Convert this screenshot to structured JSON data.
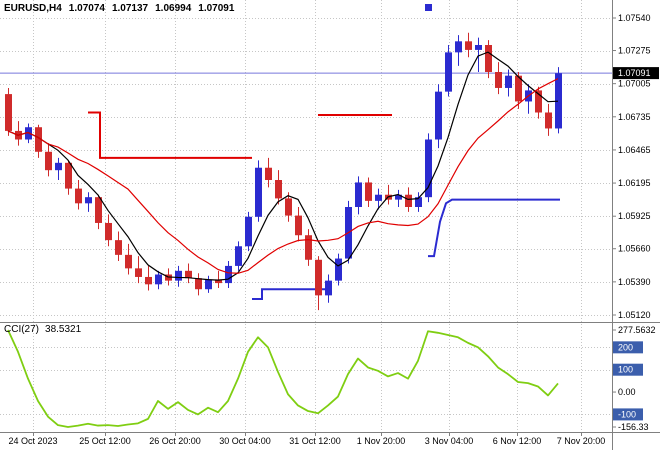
{
  "header": {
    "symbol": "EURUSD,H4",
    "open": "1.07074",
    "high": "1.07137",
    "low": "1.06994",
    "close": "1.07091"
  },
  "colors": {
    "background": "#FFFFFF",
    "text": "#000000",
    "grid": "#C6C6C6",
    "bull": "#2B2BD0",
    "bear": "#D02B2B",
    "price_line": "#7878DC",
    "cci": "#7FCE12",
    "axis_box": "#3B5EAC",
    "current_bg": "#000000",
    "current_text": "#FFFFFF",
    "separator": "#808080"
  },
  "chart_data": {
    "type": "candlestick",
    "title": "EURUSD,H4",
    "timeframe": "H4",
    "price_axis": {
      "tick_labels": [
        "1.07540",
        "1.07275",
        "1.07005",
        "1.06735",
        "1.06465",
        "1.06195",
        "1.05925",
        "1.05660",
        "1.05390",
        "1.05120"
      ],
      "current_price": "1.07091",
      "current_price_value": 1.07091
    },
    "time_axis": {
      "labels": [
        "24 Oct 2023",
        "25 Oct 12:00",
        "26 Oct 20:00",
        "30 Oct 04:00",
        "31 Oct 12:00",
        "1 Nov 20:00",
        "3 Nov 04:00",
        "6 Nov 12:00",
        "7 Nov 20:00"
      ]
    },
    "candles": {
      "ohlc": [
        [
          1.0692,
          1.0697,
          1.0658,
          1.0662
        ],
        [
          1.0662,
          1.067,
          1.065,
          1.0655
        ],
        [
          1.0655,
          1.0668,
          1.0652,
          1.0665
        ],
        [
          1.0665,
          1.0667,
          1.064,
          1.0645
        ],
        [
          1.0645,
          1.0652,
          1.0625,
          1.063
        ],
        [
          1.063,
          1.064,
          1.0622,
          1.0636
        ],
        [
          1.0636,
          1.0638,
          1.061,
          1.0615
        ],
        [
          1.0615,
          1.0622,
          1.0598,
          1.0603
        ],
        [
          1.0603,
          1.0612,
          1.0596,
          1.0608
        ],
        [
          1.0608,
          1.061,
          1.0582,
          1.0587
        ],
        [
          1.0587,
          1.0594,
          1.0568,
          1.0573
        ],
        [
          1.0573,
          1.058,
          1.0556,
          1.0561
        ],
        [
          1.0561,
          1.057,
          1.0545,
          1.055
        ],
        [
          1.055,
          1.056,
          1.0538,
          1.0543
        ],
        [
          1.0543,
          1.0552,
          1.0532,
          1.0537
        ],
        [
          1.0537,
          1.0548,
          1.0533,
          1.0545
        ],
        [
          1.0545,
          1.055,
          1.0536,
          1.054
        ],
        [
          1.054,
          1.0552,
          1.0535,
          1.0548
        ],
        [
          1.0548,
          1.0554,
          1.0538,
          1.0542
        ],
        [
          1.0542,
          1.0546,
          1.0528,
          1.0533
        ],
        [
          1.0533,
          1.0544,
          1.053,
          1.0541
        ],
        [
          1.0541,
          1.0548,
          1.0534,
          1.0538
        ],
        [
          1.0538,
          1.0556,
          1.0534,
          1.0552
        ],
        [
          1.0552,
          1.0572,
          1.0548,
          1.0568
        ],
        [
          1.0568,
          1.0596,
          1.0564,
          1.0592
        ],
        [
          1.0592,
          1.0638,
          1.0588,
          1.0632
        ],
        [
          1.0632,
          1.064,
          1.0616,
          1.0622
        ],
        [
          1.0622,
          1.063,
          1.0602,
          1.0607
        ],
        [
          1.0607,
          1.0612,
          1.0588,
          1.0593
        ],
        [
          1.0593,
          1.06,
          1.0572,
          1.0577
        ],
        [
          1.0577,
          1.0582,
          1.0552,
          1.0557
        ],
        [
          1.0557,
          1.056,
          1.0516,
          1.0528
        ],
        [
          1.0528,
          1.0545,
          1.0522,
          1.054
        ],
        [
          1.054,
          1.0562,
          1.0536,
          1.0558
        ],
        [
          1.0558,
          1.0605,
          1.0554,
          1.06
        ],
        [
          1.06,
          1.0625,
          1.0594,
          1.062
        ],
        [
          1.062,
          1.0624,
          1.06,
          1.0605
        ],
        [
          1.0605,
          1.0615,
          1.0598,
          1.061
        ],
        [
          1.061,
          1.0618,
          1.0602,
          1.0606
        ],
        [
          1.0606,
          1.0614,
          1.06,
          1.061
        ],
        [
          1.061,
          1.0616,
          1.0596,
          1.06
        ],
        [
          1.06,
          1.0612,
          1.0596,
          1.0608
        ],
        [
          1.0608,
          1.066,
          1.0604,
          1.0655
        ],
        [
          1.0655,
          1.07,
          1.0648,
          1.0694
        ],
        [
          1.0694,
          1.0732,
          1.069,
          1.0726
        ],
        [
          1.0726,
          1.074,
          1.0715,
          1.0735
        ],
        [
          1.0735,
          1.0742,
          1.0722,
          1.0728
        ],
        [
          1.0728,
          1.0738,
          1.071,
          1.0732
        ],
        [
          1.0732,
          1.0736,
          1.0705,
          1.071
        ],
        [
          1.071,
          1.0718,
          1.0692,
          1.0697
        ],
        [
          1.0697,
          1.0712,
          1.069,
          1.0707
        ],
        [
          1.0707,
          1.071,
          1.068,
          1.0686
        ],
        [
          1.0686,
          1.07,
          1.0676,
          1.0695
        ],
        [
          1.0695,
          1.0698,
          1.0672,
          1.0677
        ],
        [
          1.0677,
          1.0684,
          1.0658,
          1.0664
        ],
        [
          1.0664,
          1.0714,
          1.066,
          1.0709
        ]
      ]
    },
    "overlays": {
      "ma_fast": {
        "name": "ma-fast",
        "color": "#000000",
        "period": 5
      },
      "ma_slow": {
        "name": "ma-slow",
        "color": "#E00000",
        "period": 13
      },
      "marker": {
        "shape": "square",
        "color": "#2B2BD0",
        "x_index": 42
      },
      "segments": [
        {
          "name": "resistance-step-1",
          "color": "#E00000",
          "points": [
            [
              8.0,
              1.0677
            ],
            [
              9.2,
              1.0677
            ],
            [
              9.2,
              1.064
            ],
            [
              24.4,
              1.064
            ]
          ]
        },
        {
          "name": "resistance-step-2",
          "color": "#E00000",
          "points": [
            [
              31.0,
              1.0675
            ],
            [
              38.4,
              1.0675
            ]
          ]
        },
        {
          "name": "support-step-1",
          "color": "#2B2BD0",
          "points": [
            [
              24.4,
              1.0525
            ],
            [
              25.4,
              1.0525
            ],
            [
              25.4,
              1.0533
            ],
            [
              32.4,
              1.0533
            ]
          ]
        },
        {
          "name": "support-step-2",
          "color": "#2B2BD0",
          "points": [
            [
              42.0,
              1.056
            ],
            [
              42.6,
              1.056
            ],
            [
              43.2,
              1.0588
            ],
            [
              43.8,
              1.0603
            ],
            [
              44.4,
              1.0606
            ],
            [
              55.2,
              1.0606
            ]
          ]
        }
      ]
    },
    "indicator": {
      "name": "CCI(27)",
      "value": "38.5321",
      "values": [
        277.5632,
        180,
        60,
        -40,
        -110,
        -148,
        -156.33,
        -150,
        -142,
        -150,
        -148,
        -152,
        -145,
        -140,
        -120,
        -40,
        -75,
        -45,
        -80,
        -100,
        -70,
        -90,
        -40,
        60,
        180,
        245,
        200,
        90,
        -10,
        -60,
        -85,
        -95,
        -60,
        -20,
        80,
        150,
        110,
        95,
        70,
        85,
        60,
        140,
        272,
        265,
        255,
        245,
        220,
        200,
        160,
        110,
        80,
        45,
        40,
        25,
        -15,
        38.5321
      ],
      "axis": {
        "ticks": [
          {
            "label": "277.5632",
            "value": 277.5632,
            "boxed": false
          },
          {
            "label": "200",
            "value": 200,
            "boxed": true
          },
          {
            "label": "100",
            "value": 100,
            "boxed": true
          },
          {
            "label": "0.00",
            "value": 0,
            "boxed": false
          },
          {
            "label": "-100",
            "value": -100,
            "boxed": true
          },
          {
            "label": "-156.33",
            "value": -156.33,
            "boxed": false
          }
        ]
      }
    }
  }
}
